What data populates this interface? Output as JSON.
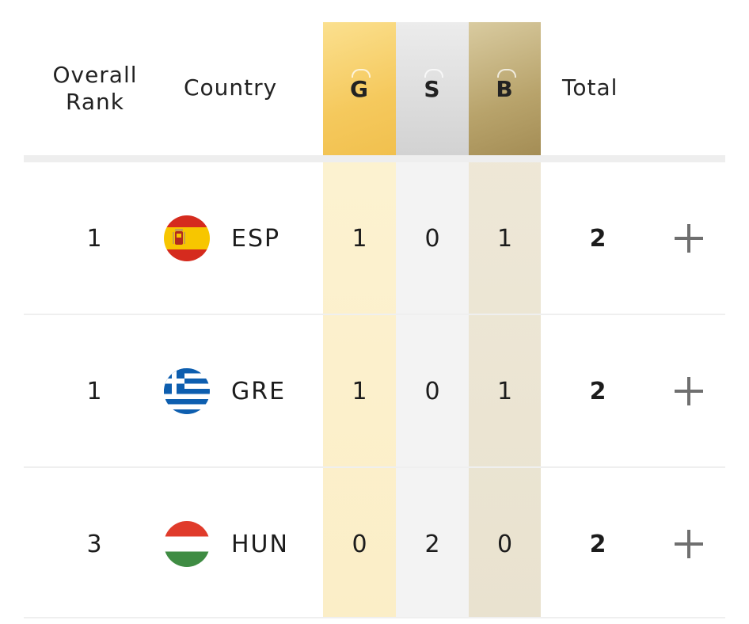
{
  "header": {
    "rank_label": "Overall Rank",
    "country_label": "Country",
    "gold_label": "G",
    "silver_label": "S",
    "bronze_label": "B",
    "total_label": "Total"
  },
  "colors": {
    "gold": "#f5c95d",
    "silver": "#d2d2d2",
    "bronze": "#b8a36b"
  },
  "rows": [
    {
      "rank": "1",
      "code": "ESP",
      "flag": "spain-flag-icon",
      "gold": "1",
      "silver": "0",
      "bronze": "1",
      "total": "2"
    },
    {
      "rank": "1",
      "code": "GRE",
      "flag": "greece-flag-icon",
      "gold": "1",
      "silver": "0",
      "bronze": "1",
      "total": "2"
    },
    {
      "rank": "3",
      "code": "HUN",
      "flag": "hungary-flag-icon",
      "gold": "0",
      "silver": "2",
      "bronze": "0",
      "total": "2"
    }
  ],
  "expand_icon": "plus-icon"
}
